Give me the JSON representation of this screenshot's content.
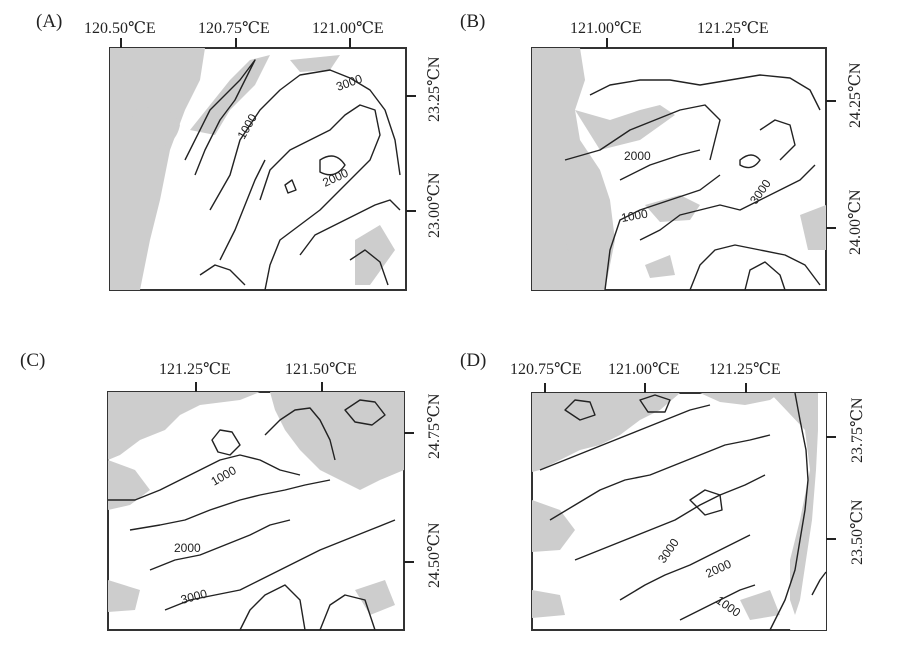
{
  "panels": [
    {
      "label": "(A)",
      "lon_ticks": [
        "120.50℃E",
        "120.75℃E",
        "121.00℃E"
      ],
      "lat_ticks": [
        "23.25℃N",
        "23.00℃N"
      ],
      "contour_labels": [
        "3000",
        "1000",
        "2000"
      ]
    },
    {
      "label": "(B)",
      "lon_ticks": [
        "121.00℃E",
        "121.25℃E"
      ],
      "lat_ticks": [
        "24.25℃N",
        "24.00℃N"
      ],
      "contour_labels": [
        "2000",
        "1000",
        "3000"
      ]
    },
    {
      "label": "(C)",
      "lon_ticks": [
        "121.25℃E",
        "121.50℃E"
      ],
      "lat_ticks": [
        "24.75℃N",
        "24.50℃N"
      ],
      "contour_labels": [
        "1000",
        "2000",
        "3000"
      ]
    },
    {
      "label": "(D)",
      "lon_ticks": [
        "120.75℃E",
        "121.00℃E",
        "121.25℃E"
      ],
      "lat_ticks": [
        "23.75℃N",
        "23.50℃N"
      ],
      "contour_labels": [
        "3000",
        "2000",
        "1000"
      ]
    }
  ],
  "colors": {
    "shaded": "#cdcdcd",
    "contour": "#222222",
    "frame": "#333333"
  }
}
